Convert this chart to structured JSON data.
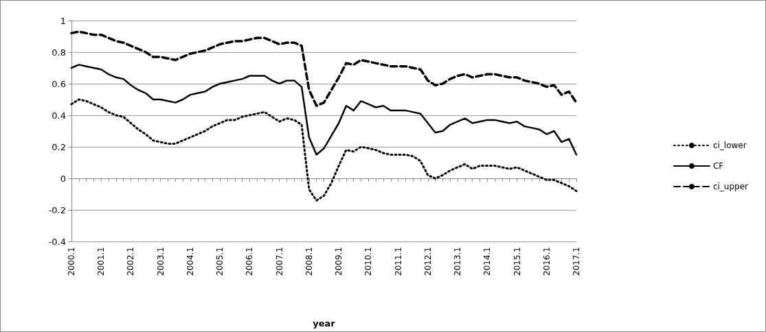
{
  "chart_data": {
    "type": "line",
    "xlabel": "year",
    "categories": [
      "2000.1",
      null,
      null,
      null,
      "2001.1",
      null,
      null,
      null,
      "2002.1",
      null,
      null,
      null,
      "2003.1",
      null,
      null,
      null,
      "2004.1",
      null,
      null,
      null,
      "2005.1",
      null,
      null,
      null,
      "2006.1",
      null,
      null,
      null,
      "2007.1",
      null,
      null,
      null,
      "2008.1",
      null,
      null,
      null,
      "2009.1",
      null,
      null,
      null,
      "2010.1",
      null,
      null,
      null,
      "2011.1",
      null,
      null,
      null,
      "2012.1",
      null,
      null,
      null,
      "2013.1",
      null,
      null,
      null,
      "2014.1",
      null,
      null,
      null,
      "2015.1",
      null,
      null,
      null,
      "2016.1",
      null,
      null,
      null,
      "2017.1"
    ],
    "series": [
      {
        "name": "ci_lower",
        "color": "#000000",
        "line_style": "dotted",
        "values": [
          0.47,
          0.5,
          0.49,
          0.47,
          0.45,
          0.42,
          0.4,
          0.39,
          0.35,
          0.31,
          0.28,
          0.24,
          0.23,
          0.22,
          0.22,
          0.24,
          0.26,
          0.28,
          0.3,
          0.33,
          0.35,
          0.37,
          0.37,
          0.39,
          0.4,
          0.41,
          0.42,
          0.39,
          0.36,
          0.38,
          0.37,
          0.34,
          -0.07,
          -0.14,
          -0.11,
          -0.03,
          0.08,
          0.18,
          0.17,
          0.2,
          0.19,
          0.18,
          0.16,
          0.15,
          0.15,
          0.15,
          0.14,
          0.11,
          0.02,
          0,
          0.02,
          0.05,
          0.07,
          0.09,
          0.06,
          0.08,
          0.08,
          0.08,
          0.07,
          0.06,
          0.07,
          0.05,
          0.03,
          0.01,
          -0.01,
          -0.01,
          -0.03,
          -0.05,
          -0.08
        ]
      },
      {
        "name": "CF",
        "color": "#000000",
        "line_style": "solid",
        "values": [
          0.7,
          0.72,
          0.71,
          0.7,
          0.69,
          0.66,
          0.64,
          0.63,
          0.59,
          0.56,
          0.54,
          0.5,
          0.5,
          0.49,
          0.48,
          0.5,
          0.53,
          0.54,
          0.55,
          0.58,
          0.6,
          0.61,
          0.62,
          0.63,
          0.65,
          0.65,
          0.65,
          0.62,
          0.6,
          0.62,
          0.62,
          0.58,
          0.26,
          0.15,
          0.19,
          0.27,
          0.35,
          0.46,
          0.43,
          0.49,
          0.47,
          0.45,
          0.46,
          0.43,
          0.43,
          0.43,
          0.42,
          0.41,
          0.35,
          0.29,
          0.3,
          0.34,
          0.36,
          0.38,
          0.35,
          0.36,
          0.37,
          0.37,
          0.36,
          0.35,
          0.36,
          0.33,
          0.32,
          0.31,
          0.28,
          0.3,
          0.23,
          0.25,
          0.15
        ]
      },
      {
        "name": "ci_upper",
        "color": "#000000",
        "line_style": "dashed",
        "values": [
          0.92,
          0.93,
          0.92,
          0.91,
          0.91,
          0.89,
          0.87,
          0.86,
          0.84,
          0.82,
          0.8,
          0.77,
          0.77,
          0.76,
          0.75,
          0.77,
          0.79,
          0.8,
          0.81,
          0.83,
          0.85,
          0.86,
          0.87,
          0.87,
          0.88,
          0.89,
          0.89,
          0.87,
          0.85,
          0.86,
          0.86,
          0.84,
          0.56,
          0.46,
          0.48,
          0.56,
          0.64,
          0.73,
          0.72,
          0.75,
          0.74,
          0.73,
          0.72,
          0.71,
          0.71,
          0.71,
          0.7,
          0.69,
          0.62,
          0.59,
          0.6,
          0.63,
          0.65,
          0.66,
          0.64,
          0.65,
          0.66,
          0.66,
          0.65,
          0.64,
          0.64,
          0.62,
          0.61,
          0.6,
          0.58,
          0.59,
          0.53,
          0.55,
          0.48
        ]
      }
    ],
    "ylim": [
      -0.4,
      1
    ],
    "yticks": [
      -0.4,
      -0.2,
      0,
      0.2,
      0.4,
      0.6,
      0.8,
      1
    ],
    "grid": "y",
    "legend": "right",
    "marker": "none"
  }
}
